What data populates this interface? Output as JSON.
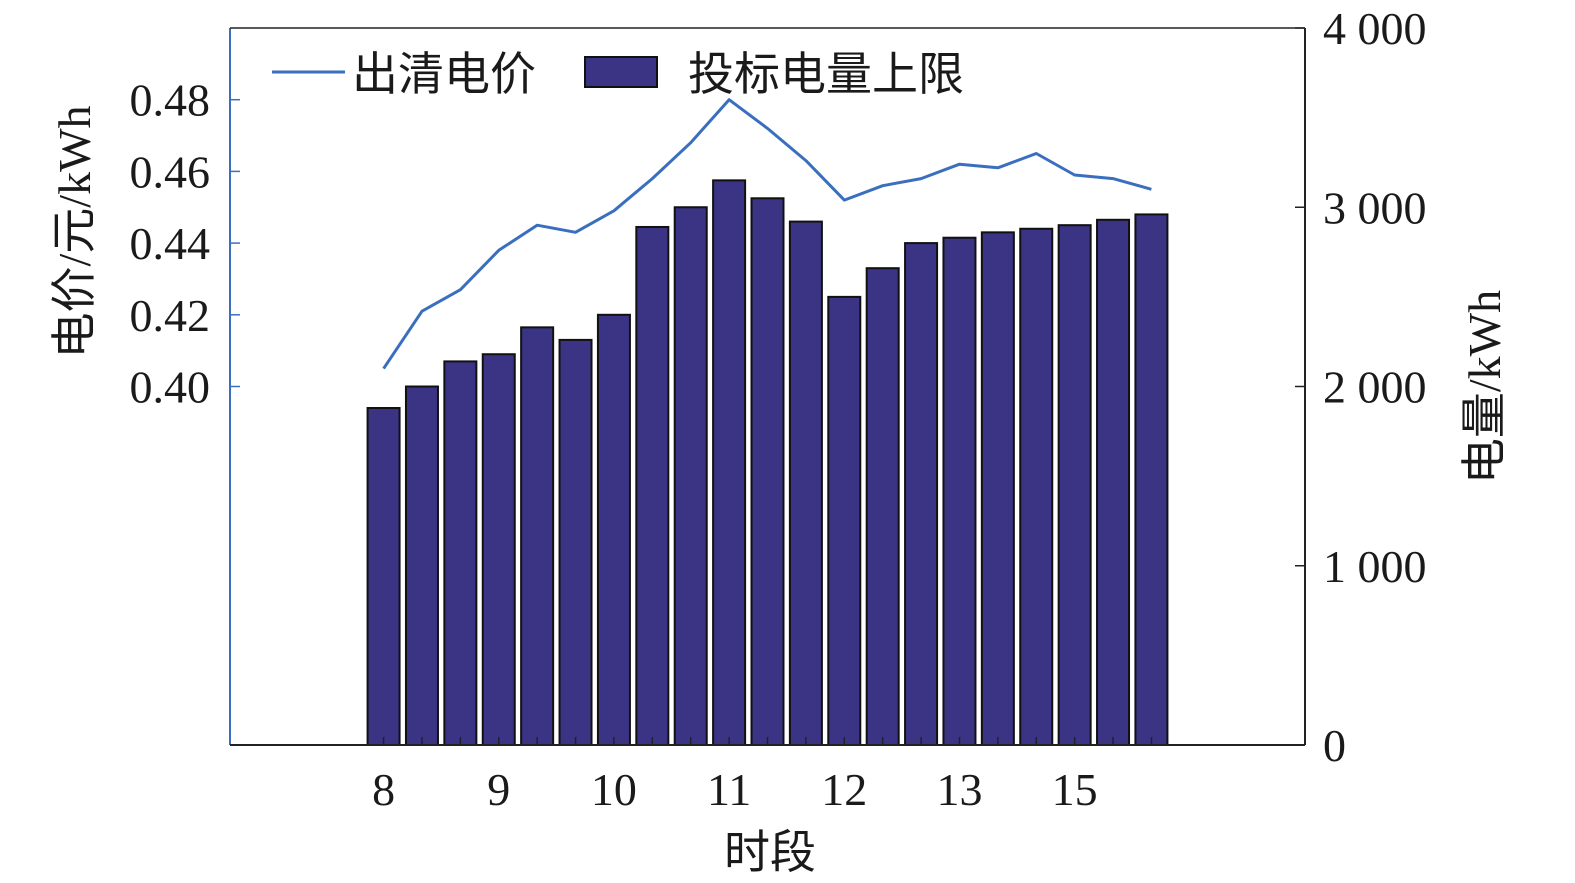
{
  "chart_data": {
    "type": "bar",
    "xlabel": "时段",
    "ylabel_left": "电价/元/kWh",
    "ylabel_right": "电量/kWh",
    "x_ticks": [
      8,
      9,
      10,
      11,
      12,
      13,
      15
    ],
    "xlim": [
      6.8,
      15.2
    ],
    "ylim_left": [
      0.3,
      0.5
    ],
    "yticks_left": [
      "0.40",
      "0.42",
      "0.44",
      "0.46",
      "0.48"
    ],
    "ylim_right": [
      0,
      4000
    ],
    "yticks_right": [
      "0",
      "1 000",
      "2 000",
      "3 000",
      "4 000"
    ],
    "legend": {
      "placement": "top-left",
      "line_label": "出清电价",
      "bar_label": "投标电量上限"
    },
    "series": [
      {
        "name": "出清电价",
        "kind": "line",
        "axis": "left",
        "x": [
          8,
          8.3,
          8.6,
          8.9,
          9.2,
          9.5,
          9.8,
          10.1,
          10.4,
          10.7,
          11.0,
          11.3,
          11.6,
          11.9,
          12.2,
          12.5,
          12.8,
          13.1,
          13.4,
          13.7,
          14.0
        ],
        "values": [
          0.405,
          0.421,
          0.427,
          0.438,
          0.445,
          0.443,
          0.449,
          0.458,
          0.468,
          0.48,
          0.472,
          0.463,
          0.452,
          0.456,
          0.458,
          0.462,
          0.461,
          0.465,
          0.459,
          0.458,
          0.455
        ]
      },
      {
        "name": "投标电量上限",
        "kind": "bar",
        "axis": "right",
        "x": [
          8,
          8.3,
          8.6,
          8.9,
          9.2,
          9.5,
          9.8,
          10.1,
          10.4,
          10.7,
          11.0,
          11.3,
          11.6,
          11.9,
          12.2,
          12.5,
          12.8,
          13.1,
          13.4,
          13.7,
          14.0
        ],
        "values": [
          1880,
          2000,
          2140,
          2180,
          2330,
          2260,
          2400,
          2890,
          3000,
          3150,
          3050,
          2920,
          2500,
          2660,
          2800,
          2830,
          2860,
          2880,
          2900,
          2930,
          2960
        ]
      }
    ],
    "colors": {
      "bar_fill": "#3b3484",
      "bar_edge": "#111111",
      "line": "#3a6fbf",
      "left_axis": "#3a6fbf",
      "frame": "#222222"
    }
  }
}
